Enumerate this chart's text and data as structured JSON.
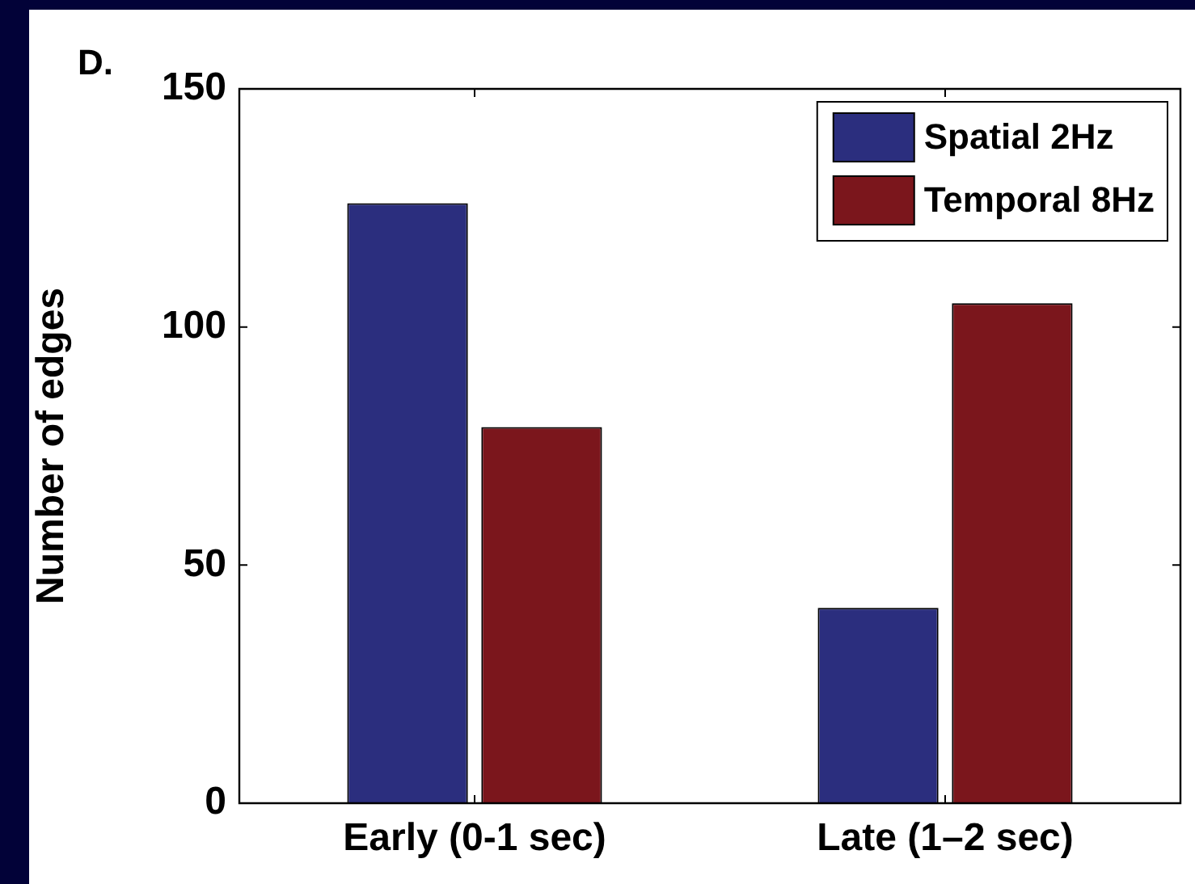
{
  "chart_data": {
    "type": "bar",
    "ylabel": "Number of edges",
    "annotations": [
      "D."
    ],
    "categories": [
      "Early (0-1 sec)",
      "Late (1–2 sec)"
    ],
    "series": [
      {
        "name": "Spatial 2Hz",
        "color": "#2b2e7e",
        "values": [
          126,
          41
        ]
      },
      {
        "name": "Temporal 8Hz",
        "color": "#7b161c",
        "values": [
          79,
          105
        ]
      }
    ],
    "ylim": [
      0,
      150
    ],
    "yticks": [
      0,
      50,
      100,
      150
    ],
    "grid": false,
    "legend": "top right"
  }
}
